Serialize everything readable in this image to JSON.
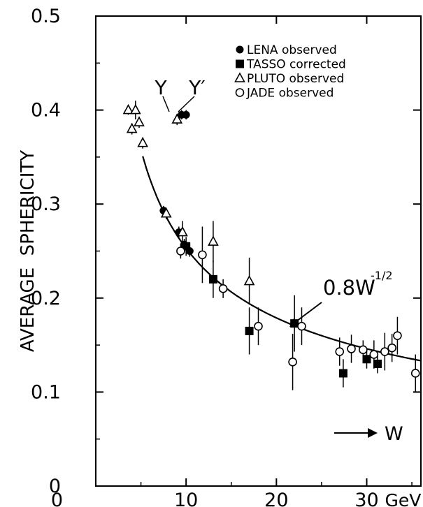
{
  "chart_data": {
    "type": "scatter",
    "title": "",
    "xlabel": "",
    "ylabel": "AVERAGE  SPHERICITY",
    "xlim": [
      0,
      36
    ],
    "ylim": [
      0,
      0.5
    ],
    "x_ticks": [
      {
        "value": 10,
        "label": "10"
      },
      {
        "value": 20,
        "label": "20"
      },
      {
        "value": 30,
        "label": "30"
      }
    ],
    "x_unit": "GeV",
    "y_ticks": [
      {
        "value": 0,
        "label": "0"
      },
      {
        "value": 0.1,
        "label": "0.1"
      },
      {
        "value": 0.2,
        "label": "0.2"
      },
      {
        "value": 0.3,
        "label": "0.3"
      },
      {
        "value": 0.4,
        "label": "0.4"
      },
      {
        "value": 0.5,
        "label": "0.5"
      }
    ],
    "grid": false,
    "legend_position": "top-right",
    "series": [
      {
        "name": "LENA observed",
        "marker": "filled-circle",
        "points": [
          {
            "x": 7.5,
            "y": 0.293,
            "err": 0.005
          },
          {
            "x": 9.2,
            "y": 0.27,
            "err": 0.006
          },
          {
            "x": 9.8,
            "y": 0.257,
            "err": 0.006
          },
          {
            "x": 10.4,
            "y": 0.25,
            "err": 0.006
          },
          {
            "x": 9.5,
            "y": 0.395,
            "err": 0.005
          },
          {
            "x": 10.0,
            "y": 0.395,
            "err": 0.005
          }
        ]
      },
      {
        "name": "TASSO corrected",
        "marker": "filled-square",
        "points": [
          {
            "x": 10.0,
            "y": 0.255,
            "err": 0.01
          },
          {
            "x": 13.0,
            "y": 0.22,
            "err": 0.02
          },
          {
            "x": 17.0,
            "y": 0.165,
            "err": 0.025
          },
          {
            "x": 22.0,
            "y": 0.173,
            "err": 0.03
          },
          {
            "x": 27.4,
            "y": 0.12,
            "err": 0.015
          },
          {
            "x": 30.0,
            "y": 0.135,
            "err": 0.01
          },
          {
            "x": 31.2,
            "y": 0.13,
            "err": 0.01
          }
        ]
      },
      {
        "name": "PLUTO observed",
        "marker": "open-triangle",
        "points": [
          {
            "x": 3.6,
            "y": 0.4,
            "err": 0.005
          },
          {
            "x": 4.0,
            "y": 0.38,
            "err": 0.006
          },
          {
            "x": 4.4,
            "y": 0.4,
            "err": 0.01
          },
          {
            "x": 4.8,
            "y": 0.387,
            "err": 0.006
          },
          {
            "x": 5.2,
            "y": 0.365,
            "err": 0.006
          },
          {
            "x": 7.8,
            "y": 0.29,
            "err": 0.006
          },
          {
            "x": 9.0,
            "y": 0.39,
            "err": 0.006
          },
          {
            "x": 9.6,
            "y": 0.27,
            "err": 0.012
          },
          {
            "x": 13.0,
            "y": 0.26,
            "err": 0.022
          },
          {
            "x": 17.0,
            "y": 0.218,
            "err": 0.025
          }
        ]
      },
      {
        "name": "JADE observed",
        "marker": "open-circle",
        "points": [
          {
            "x": 9.4,
            "y": 0.25,
            "err": 0.008
          },
          {
            "x": 11.8,
            "y": 0.246,
            "err": 0.03
          },
          {
            "x": 14.1,
            "y": 0.21,
            "err": 0.01
          },
          {
            "x": 18.0,
            "y": 0.17,
            "err": 0.02
          },
          {
            "x": 21.8,
            "y": 0.132,
            "err": 0.03
          },
          {
            "x": 22.8,
            "y": 0.17,
            "err": 0.02
          },
          {
            "x": 27.0,
            "y": 0.143,
            "err": 0.015
          },
          {
            "x": 28.3,
            "y": 0.146,
            "err": 0.015
          },
          {
            "x": 29.6,
            "y": 0.145,
            "err": 0.01
          },
          {
            "x": 30.8,
            "y": 0.14,
            "err": 0.015
          },
          {
            "x": 32.0,
            "y": 0.143,
            "err": 0.02
          },
          {
            "x": 32.8,
            "y": 0.147,
            "err": 0.015
          },
          {
            "x": 33.4,
            "y": 0.16,
            "err": 0.02
          },
          {
            "x": 35.4,
            "y": 0.12,
            "err": 0.02
          }
        ]
      }
    ],
    "curve": {
      "formula": "0.8 W^(-1/2)",
      "coefficient": 0.8,
      "exponent": -0.5,
      "x_start": 5.2,
      "x_end": 36
    },
    "annotations": {
      "curve_label_main": "0.8W",
      "curve_label_exp": "-1/2",
      "upsilon": "Υ",
      "upsilon_prime": "Υ′",
      "arrow_label": "W"
    }
  }
}
